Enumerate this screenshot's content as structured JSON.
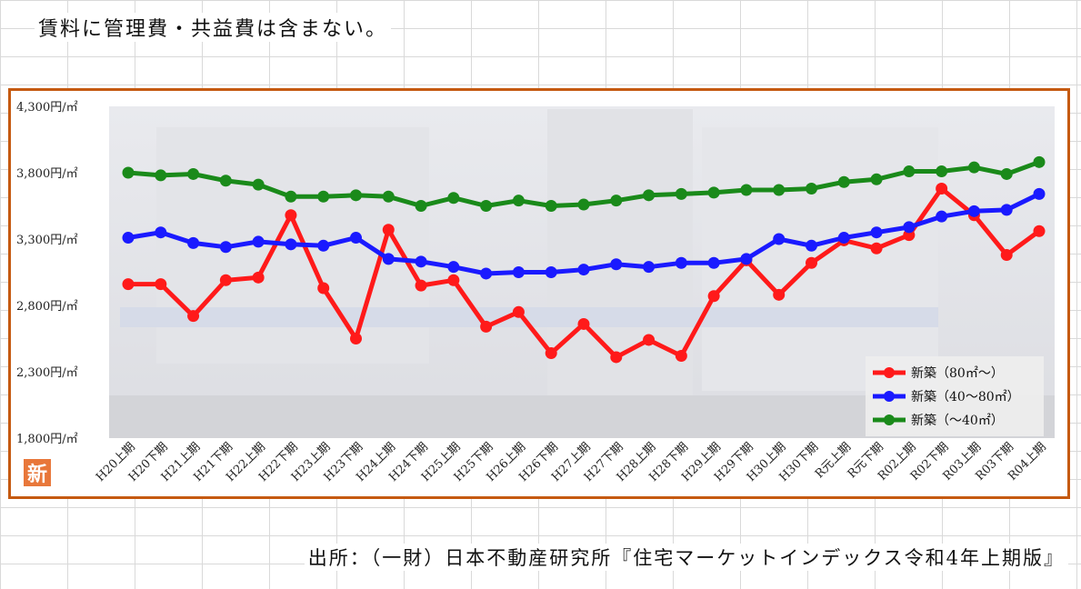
{
  "note": "賃料に管理費・共益費は含まない。",
  "source": "出所：（一財）日本不動産研究所『住宅マーケットインデックス令和4年上期版』",
  "badge": "新",
  "chart_data": {
    "type": "line",
    "categories": [
      "H20上期",
      "H20下期",
      "H21上期",
      "H21下期",
      "H22上期",
      "H22下期",
      "H23上期",
      "H23下期",
      "H24上期",
      "H24下期",
      "H25上期",
      "H25下期",
      "H26上期",
      "H26下期",
      "H27上期",
      "H27下期",
      "H28上期",
      "H28下期",
      "H29上期",
      "H29下期",
      "H30上期",
      "H30下期",
      "R元上期",
      "R元下期",
      "R02上期",
      "R02下期",
      "R03上期",
      "R03下期",
      "R04上期"
    ],
    "ylim": [
      1800,
      4300
    ],
    "yticks": [
      1800,
      2300,
      2800,
      3300,
      3800,
      4300
    ],
    "ytick_labels": [
      "1,800円/㎡",
      "2,300円/㎡",
      "2,800円/㎡",
      "3,300円/㎡",
      "3,800円/㎡",
      "4,300円/㎡"
    ],
    "series": [
      {
        "name": "新築（80㎡～）",
        "color": "#ff1a1a",
        "values": [
          2960,
          2960,
          2720,
          2990,
          3010,
          3480,
          2930,
          2550,
          3370,
          2950,
          2990,
          2640,
          2750,
          2440,
          2660,
          2410,
          2540,
          2420,
          2870,
          3140,
          2880,
          3120,
          3290,
          3230,
          3330,
          3680,
          3480,
          3180,
          3360
        ]
      },
      {
        "name": "新築（40～80㎡）",
        "color": "#1a1aff",
        "values": [
          3310,
          3350,
          3270,
          3240,
          3280,
          3260,
          3250,
          3310,
          3150,
          3130,
          3090,
          3040,
          3050,
          3050,
          3070,
          3110,
          3090,
          3120,
          3120,
          3150,
          3300,
          3250,
          3310,
          3350,
          3390,
          3470,
          3510,
          3520,
          3640
        ]
      },
      {
        "name": "新築（～40㎡）",
        "color": "#1a8a1a",
        "values": [
          3800,
          3780,
          3790,
          3740,
          3710,
          3620,
          3620,
          3630,
          3620,
          3550,
          3610,
          3550,
          3590,
          3550,
          3560,
          3590,
          3630,
          3640,
          3650,
          3670,
          3670,
          3680,
          3730,
          3750,
          3810,
          3810,
          3840,
          3790,
          3880
        ]
      }
    ],
    "legend_position": "bottom-right",
    "grid": false
  }
}
